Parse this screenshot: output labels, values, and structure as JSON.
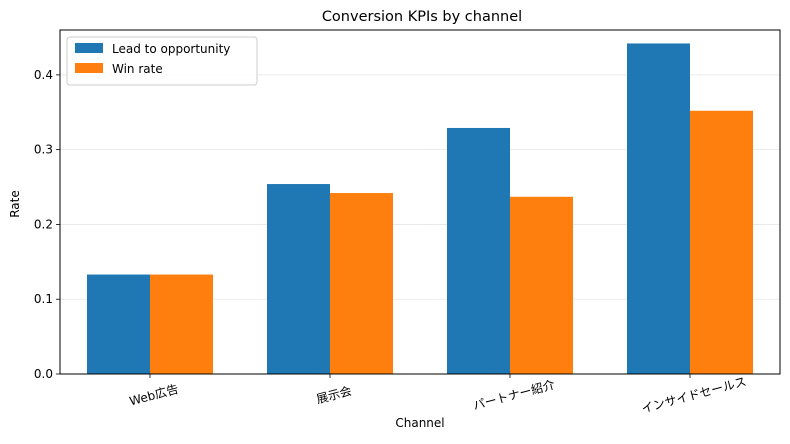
{
  "chart_data": {
    "type": "bar",
    "title": "Conversion KPIs by channel",
    "xlabel": "Channel",
    "ylabel": "Rate",
    "categories": [
      "Web広告",
      "展示会",
      "パートナー紹介",
      "インサイドセールス"
    ],
    "series": [
      {
        "name": "Lead to opportunity",
        "color": "#1f77b4",
        "values": [
          0.133,
          0.254,
          0.329,
          0.442
        ]
      },
      {
        "name": "Win rate",
        "color": "#ff7f0e",
        "values": [
          0.133,
          0.242,
          0.237,
          0.352
        ]
      }
    ],
    "ylim": [
      0,
      0.46
    ],
    "yticks": [
      0.0,
      0.1,
      0.2,
      0.3,
      0.4
    ],
    "ytick_labels": [
      "0.0",
      "0.1",
      "0.2",
      "0.3",
      "0.4"
    ],
    "legend_position": "top-left",
    "grid": "horizontal"
  }
}
